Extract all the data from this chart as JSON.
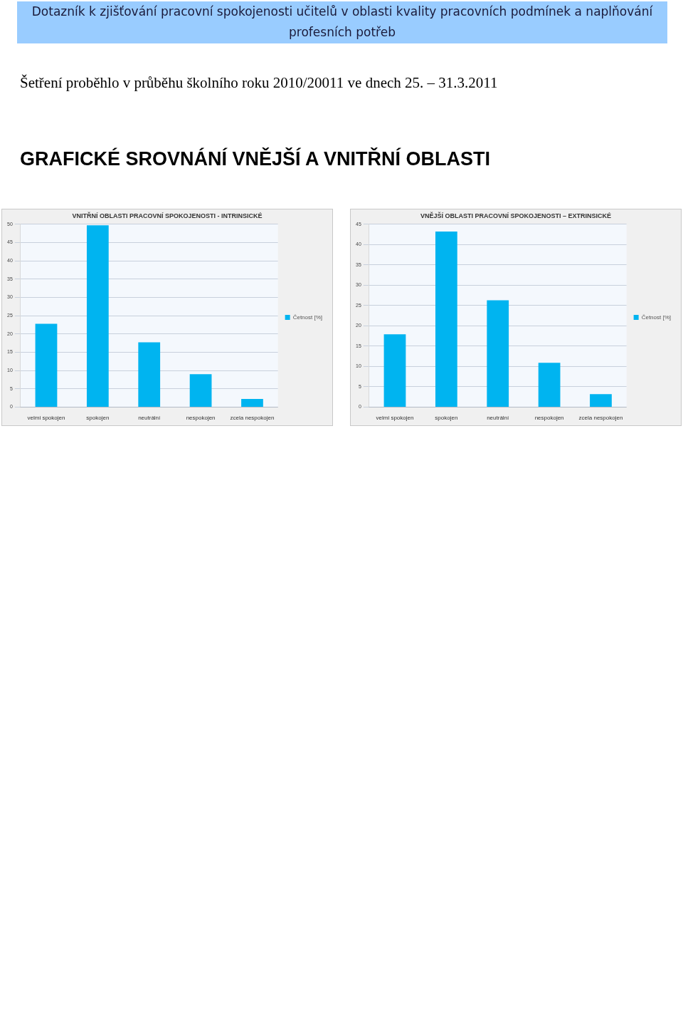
{
  "chart_data": [
    {
      "type": "other",
      "title": "Dotazník k zjišťování pracovní spokojenosti učitelů v oblasti kvality pracovních podmínek a naplňování profesních potřeb",
      "annotations": [
        "Šetření proběhlo v průběhu školního roku 2010/20011 ve dnech 25. – 31.3.2011",
        "GRAFICKÉ SROVNÁNÍ VNĚJŠÍ A VNITŘNÍ OBLASTI"
      ]
    },
    {
      "type": "bar",
      "title": "VNITŘNÍ OBLASTI PRACOVNÍ SPOKOJENOSTI - INTRINSICKÉ",
      "categories": [
        "velmi spokojen",
        "spokojen",
        "neutrální",
        "nespokojen",
        "zcela nespokojen"
      ],
      "series": [
        {
          "name": "Četnost [%]",
          "color": "#00b4f0",
          "values": [
            22.8,
            49.7,
            17.7,
            9.0,
            2.2
          ]
        }
      ],
      "ylim": [
        0,
        50
      ],
      "yticks": [
        0,
        5,
        10,
        15,
        20,
        25,
        30,
        35,
        40,
        45,
        50
      ],
      "grid": "y",
      "legend": "right"
    },
    {
      "type": "bar",
      "title": "VNĚJŠÍ OBLASTI PRACOVNÍ SPOKOJENOSTI – EXTRINSICKÉ",
      "categories": [
        "velmi spokojen",
        "spokojen",
        "neutrální",
        "nespokojen",
        "zcela nespokojen"
      ],
      "series": [
        {
          "name": "Četnost [%]",
          "color": "#00b4f0",
          "values": [
            17.9,
            43.2,
            26.3,
            10.9,
            3.2
          ]
        }
      ],
      "ylim": [
        0,
        45
      ],
      "yticks": [
        0,
        5,
        10,
        15,
        20,
        25,
        30,
        35,
        40,
        45
      ],
      "grid": "y",
      "legend": "right"
    }
  ]
}
